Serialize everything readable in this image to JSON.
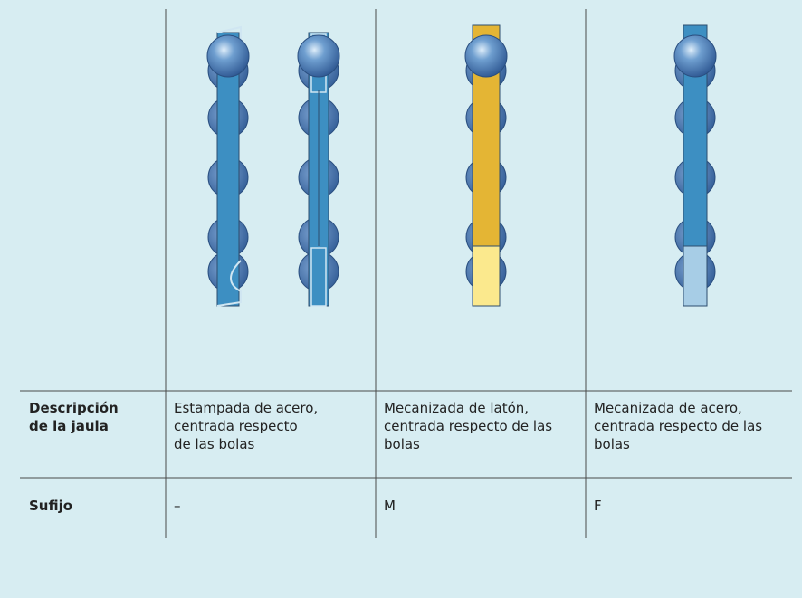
{
  "table": {
    "rows": [
      [
        "Descripción\nde la jaula",
        "Estampada de acero,\ncentrada respecto\nde las bolas",
        "Mecanizada de latón,\ncentrada respecto de las\nbolas",
        "Mecanizada de acero,\ncentrada respecto de las\nbolas"
      ],
      [
        "Sufijo",
        "–",
        "M",
        "F"
      ]
    ]
  }
}
